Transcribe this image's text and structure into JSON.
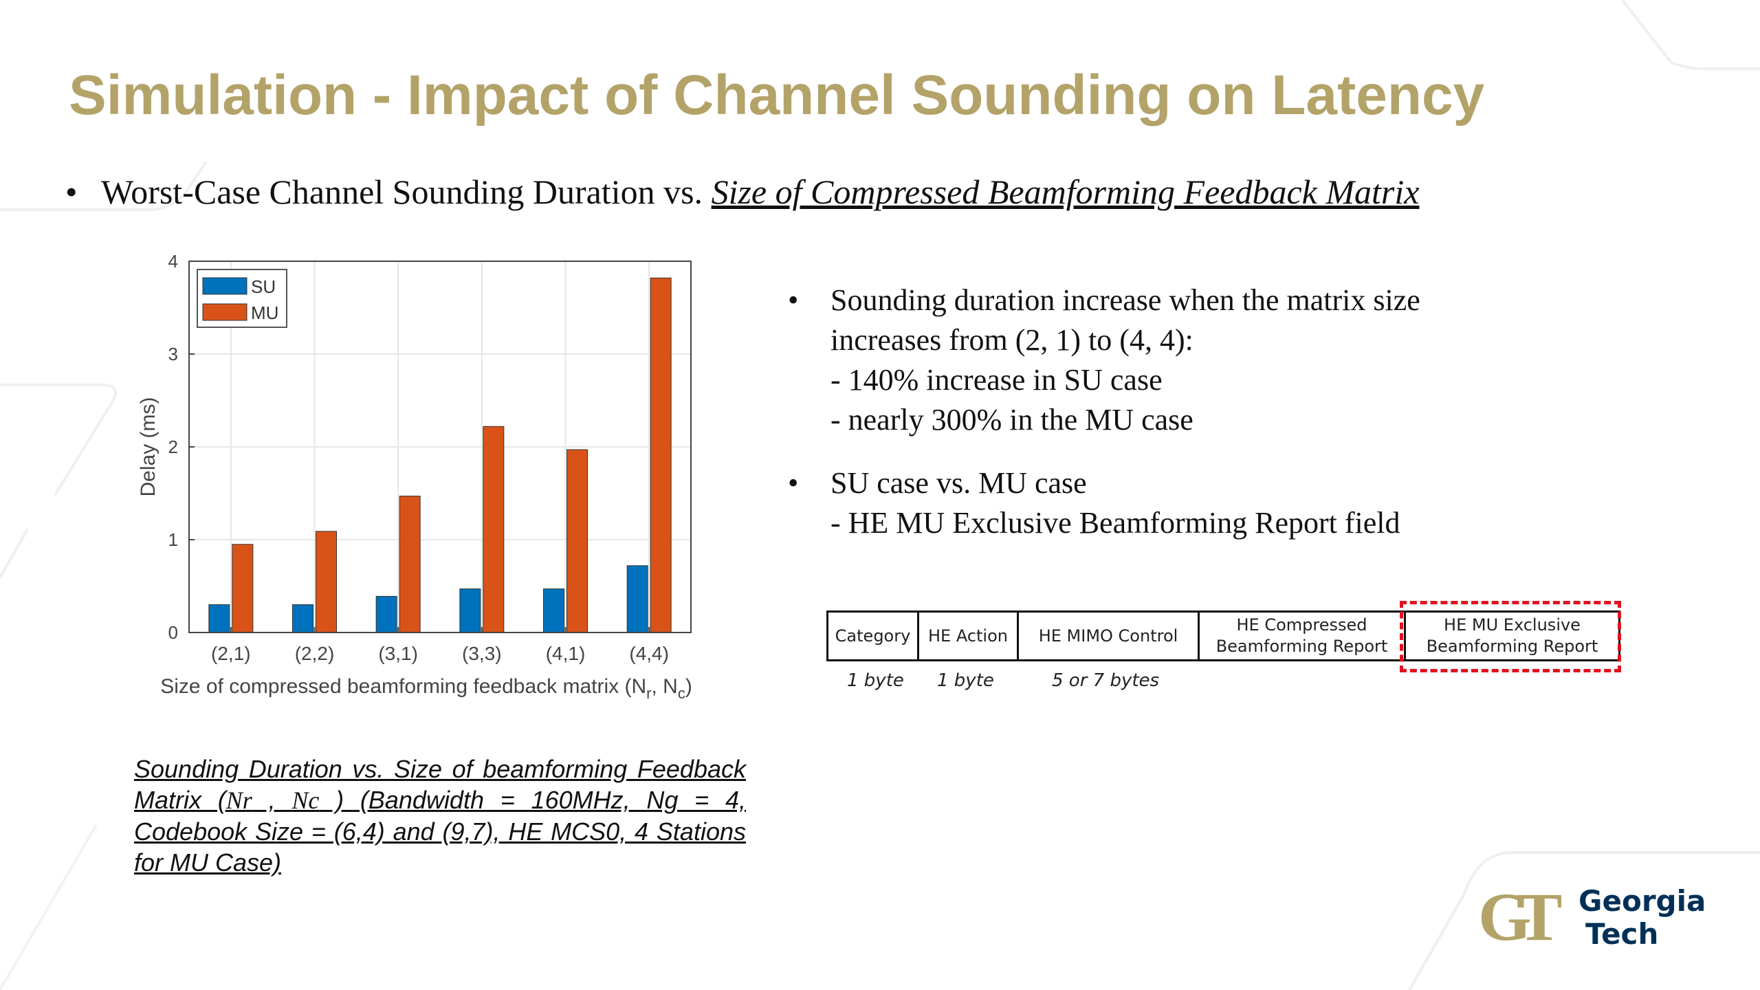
{
  "slide": {
    "title": "Simulation - Impact of Channel Sounding on Latency",
    "bullet_prefix": "Worst-Case Channel Sounding Duration vs. ",
    "bullet_emphasis": "Size of Compressed Beamforming Feedback Matrix"
  },
  "chart_data": {
    "type": "bar",
    "categories": [
      "(2,1)",
      "(2,2)",
      "(3,1)",
      "(3,3)",
      "(4,1)",
      "(4,4)"
    ],
    "series": [
      {
        "name": "SU",
        "values": [
          0.3,
          0.3,
          0.39,
          0.47,
          0.47,
          0.72
        ],
        "color": "#0072bd"
      },
      {
        "name": "MU",
        "values": [
          0.95,
          1.09,
          1.47,
          2.22,
          1.97,
          3.82
        ],
        "color": "#d95319"
      }
    ],
    "xlabel": "Size of compressed beamforming feedback matrix (N",
    "xlabel_sub1": "r",
    "xlabel_sep": ", N",
    "xlabel_sub2": "c",
    "xlabel_end": ")",
    "ylabel": "Delay (ms)",
    "ylim": [
      0,
      4
    ],
    "yticks": [
      "0",
      "1",
      "2",
      "3",
      "4"
    ],
    "grid": true,
    "legend": "top-left"
  },
  "notes": {
    "b1_line1": "Sounding duration increase when the matrix size",
    "b1_line2": "increases from (2, 1) to (4, 4):",
    "b1_line3": "- 140% increase in SU case",
    "b1_line4": "- nearly 300% in the MU case",
    "b2_line1": "SU case  vs. MU case",
    "b2_line2": "- HE MU Exclusive Beamforming Report field"
  },
  "frame": {
    "fields": [
      {
        "label": "Category",
        "size": "1 byte"
      },
      {
        "label": "HE Action",
        "size": "1 byte"
      },
      {
        "label": "HE MIMO Control",
        "size": "5 or 7 bytes"
      },
      {
        "label": "HE Compressed Beamforming Report",
        "size": ""
      },
      {
        "label": "HE MU Exclusive Beamforming Report",
        "size": ""
      }
    ],
    "highlight_color": "#e0121f"
  },
  "caption": {
    "part1": "Sounding Duration vs. Size of beamforming Feedback Matrix (",
    "nr": "Nr",
    "sep": " , ",
    "nc": "Nc",
    "part2": " ) (Bandwidth = 160MHz, Ng = 4, Codebook Size = (6,4) and (9,7), HE MCS0, 4 Stations for MU Case)"
  },
  "logo": {
    "line1": "Georgia",
    "line2": "Tech",
    "mark": "GT",
    "gold": "#b3a369",
    "navy": "#003057"
  }
}
